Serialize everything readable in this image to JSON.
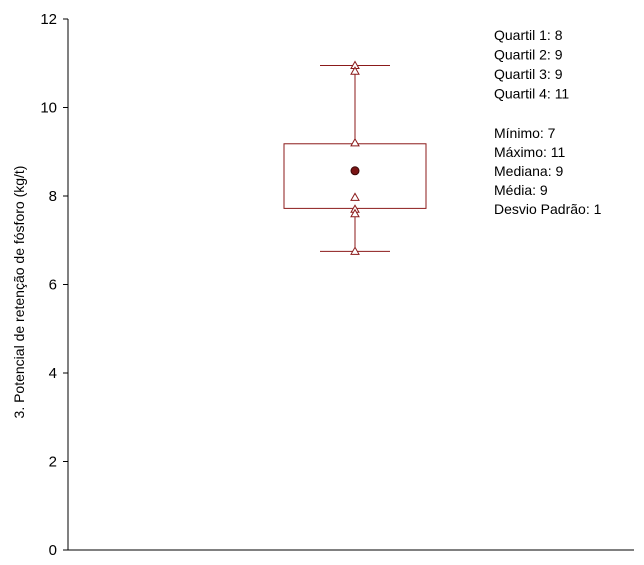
{
  "chart_data": {
    "type": "box",
    "ylabel": "3. Potencial de retenção de fósforo (kg/t)",
    "ylim": [
      0,
      12
    ],
    "y_ticks": [
      "0",
      "2",
      "4",
      "6",
      "8",
      "10",
      "12"
    ],
    "grid": false,
    "whisker_low": 6.75,
    "whisker_high": 10.95,
    "box_low": 7.72,
    "box_high": 9.18,
    "mean": 8.57,
    "points": [
      10.95,
      10.82,
      9.2,
      7.97,
      7.7,
      7.6,
      6.75
    ],
    "stats": {
      "quartis": [
        "Quartil 1: 8",
        "Quartil 2: 9",
        "Quartil 3: 9",
        "Quartil 4: 11"
      ],
      "summary": [
        "Mínimo: 7",
        "Máximo: 11",
        "Mediana:  9",
        "Média: 9",
        "Desvio Padrão: 1"
      ]
    },
    "colors": {
      "box": "#8b1a1a",
      "mean_marker": "#7a1515",
      "axis": "#000000"
    }
  }
}
